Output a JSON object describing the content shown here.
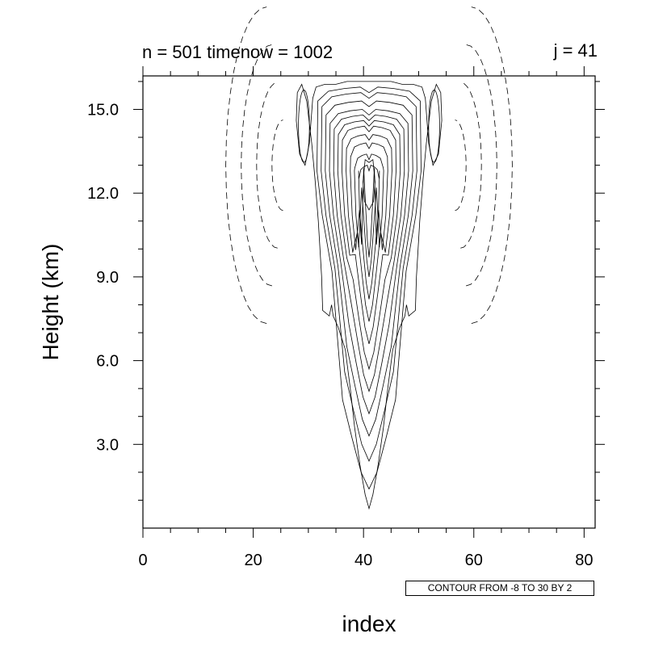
{
  "header": {
    "left_title": "n = 501 timenow = 1002",
    "right_title": "j = 41"
  },
  "info_label": "CONTOUR FROM -8 TO 30 BY 2",
  "chart_data": {
    "type": "contour",
    "xlabel": "index",
    "ylabel": "Height (km)",
    "xlim": [
      0,
      82
    ],
    "ylim": [
      0,
      16.2
    ],
    "x_ticks": [
      0,
      20,
      40,
      60,
      80
    ],
    "x_tick_labels": [
      "0",
      "20",
      "40",
      "60",
      "80"
    ],
    "y_ticks": [
      3,
      6,
      9,
      12,
      15
    ],
    "y_tick_labels": [
      "3.0",
      "6.0",
      "9.0",
      "12.0",
      "15.0"
    ],
    "contour_min": -8,
    "contour_max": 30,
    "contour_interval": 2,
    "negative_contours_dashed": true,
    "plume_center_index": 41,
    "plume_base_km": 0.7,
    "plume_top_km": 16.0,
    "negative_lobes": [
      {
        "x_center": 22,
        "y_center": 13.0
      },
      {
        "x_center": 60,
        "y_center": 13.0
      }
    ]
  }
}
